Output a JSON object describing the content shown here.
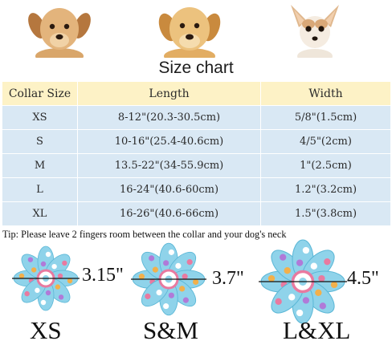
{
  "title": "Size chart",
  "table": {
    "headers": [
      "Collar Size",
      "Length",
      "Width"
    ],
    "rows": [
      [
        "XS",
        "8-12\"(20.3-30.5cm)",
        "5/8\"(1.5cm)"
      ],
      [
        "S",
        "10-16\"(25.4-40.6cm)",
        "4/5\"(2cm)"
      ],
      [
        "M",
        "13.5-22\"(34-55.9cm)",
        "1\"(2.5cm)"
      ],
      [
        "L",
        "16-24\"(40.6-60cm)",
        "1.2\"(3.2cm)"
      ],
      [
        "XL",
        "16-26\"(40.6-66cm)",
        "1.5\"(3.8cm)"
      ]
    ]
  },
  "tip": "Tip: Please leave 2 fingers room between the collar and your dog's neck",
  "bows": [
    {
      "label": "XS",
      "measure": "3.15\""
    },
    {
      "label": "S&M",
      "measure": "3.7\""
    },
    {
      "label": "L&XL",
      "measure": "4.5\""
    }
  ],
  "colors": {
    "header_bg": "#fdf2c6",
    "row_bg": "#d9e8f4",
    "bow_blue": "#8fd3ea",
    "bow_pink": "#e87aa0"
  }
}
